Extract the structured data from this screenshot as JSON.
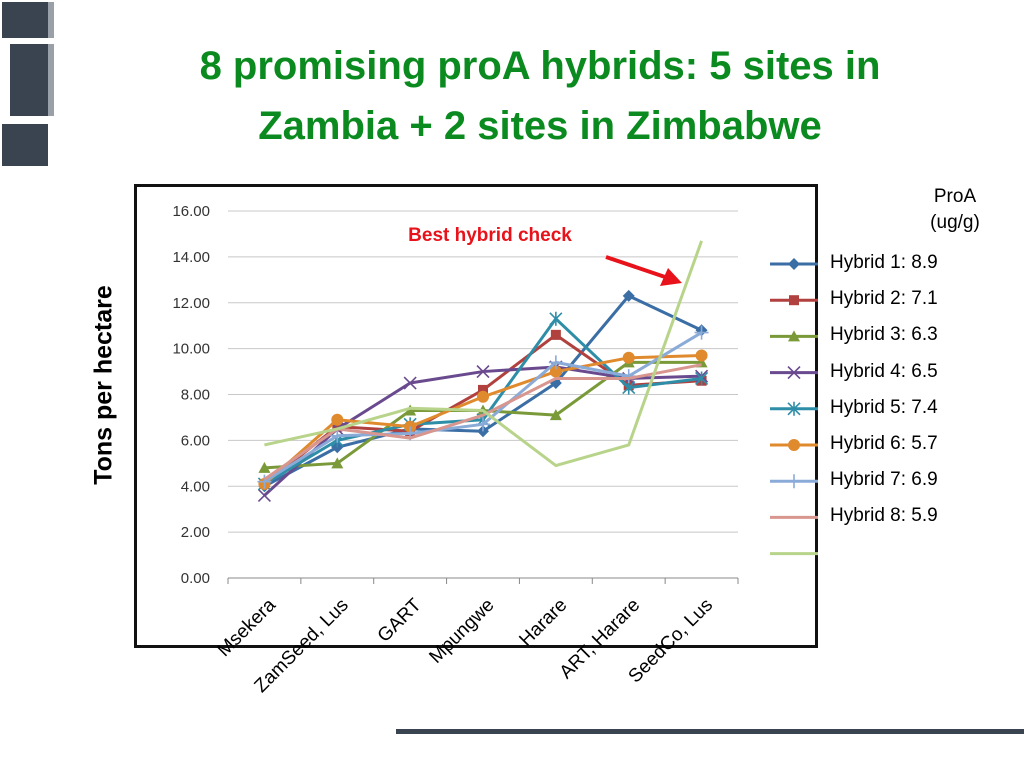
{
  "slide": {
    "title_line1": "8 promising proA hybrids: 5 sites in",
    "title_line2": "Zambia + 2 sites in Zimbabwe",
    "ylabel": "Tons per hectare",
    "annotation": "Best hybrid check",
    "legend_header_line1": "ProA",
    "legend_header_line2": "(ug/g)",
    "colors": {
      "title": "#0a8a1f",
      "annotation": "#e8121a",
      "arrow": "#e8121a"
    }
  },
  "chart_data": {
    "type": "line",
    "categories": [
      "Msekera",
      "ZamSeed, Lus",
      "GART",
      "Mpungwe",
      "Harare",
      "ART, Harare",
      "SeedCo, Lus"
    ],
    "ylim": [
      0,
      16
    ],
    "yticks": [
      "0.00",
      "2.00",
      "4.00",
      "6.00",
      "8.00",
      "10.00",
      "12.00",
      "14.00",
      "16.00"
    ],
    "grid": true,
    "legend_position": "right",
    "series": [
      {
        "name": "Hybrid 1: 8.9",
        "color": "#3a6ea5",
        "marker": "diamond",
        "values": [
          4.0,
          5.7,
          6.5,
          6.4,
          8.5,
          12.3,
          10.8
        ]
      },
      {
        "name": "Hybrid 2: 7.1",
        "color": "#b0413e",
        "marker": "square",
        "values": [
          4.1,
          6.6,
          6.4,
          8.2,
          10.6,
          8.4,
          8.6
        ]
      },
      {
        "name": "Hybrid 3: 6.3",
        "color": "#7a9a3a",
        "marker": "triangle",
        "values": [
          4.8,
          5.0,
          7.3,
          7.3,
          7.1,
          9.4,
          9.4
        ]
      },
      {
        "name": "Hybrid 4: 6.5",
        "color": "#6a4a8e",
        "marker": "x",
        "values": [
          3.6,
          6.5,
          8.5,
          9.0,
          9.2,
          8.7,
          8.8
        ]
      },
      {
        "name": "Hybrid 5: 7.4",
        "color": "#2e8ea8",
        "marker": "star",
        "values": [
          4.1,
          6.0,
          6.7,
          6.9,
          11.3,
          8.3,
          8.7
        ]
      },
      {
        "name": "Hybrid 6: 5.7",
        "color": "#e08a2e",
        "marker": "circle",
        "values": [
          4.1,
          6.9,
          6.6,
          7.9,
          9.0,
          9.6,
          9.7
        ]
      },
      {
        "name": "Hybrid 7: 6.9",
        "color": "#8aaad8",
        "marker": "plus",
        "values": [
          4.2,
          6.2,
          6.3,
          6.7,
          9.4,
          8.8,
          10.7
        ]
      },
      {
        "name": "Hybrid 8: 5.9",
        "color": "#d8968f",
        "marker": "none",
        "values": [
          4.3,
          6.5,
          6.1,
          7.1,
          8.7,
          8.7,
          9.3
        ]
      },
      {
        "color": "#b8d48a",
        "marker": "none",
        "values": [
          5.8,
          6.5,
          7.4,
          7.3,
          4.9,
          5.8,
          14.7
        ]
      }
    ]
  }
}
